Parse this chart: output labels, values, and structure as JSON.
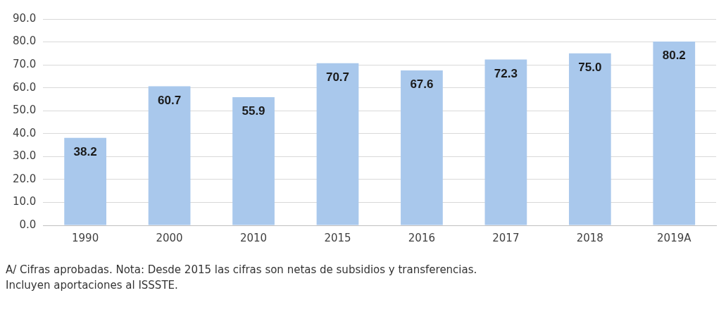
{
  "chart_data": {
    "type": "bar",
    "categories": [
      "1990",
      "2000",
      "2010",
      "2015",
      "2016",
      "2017",
      "2018",
      "2019A"
    ],
    "values": [
      38.2,
      60.7,
      55.9,
      70.7,
      67.6,
      72.3,
      75.0,
      80.2
    ],
    "value_labels": [
      "38.2",
      "60.7",
      "55.9",
      "70.7",
      "67.6",
      "72.3",
      "75.0",
      "80.2"
    ],
    "color": "#a9c8ec",
    "ylim": [
      0,
      90
    ],
    "yticks": [
      {
        "value": 0,
        "label": "0.0"
      },
      {
        "value": 10,
        "label": "10.0"
      },
      {
        "value": 20,
        "label": "20.0"
      },
      {
        "value": 30,
        "label": "30.0"
      },
      {
        "value": 40,
        "label": "40.0"
      },
      {
        "value": 50,
        "label": "50.0"
      },
      {
        "value": 60,
        "label": "60.0"
      },
      {
        "value": 70,
        "label": "70.0"
      },
      {
        "value": 80,
        "label": "80.0"
      },
      {
        "value": 90,
        "label": "90.0"
      }
    ],
    "grid": "y",
    "annotations": [
      "A/ Cifras aprobadas. Nota: Desde 2015 las cifras son netas de subsidios y transferencias. Incluyen aportaciones al ISSSTE."
    ]
  }
}
